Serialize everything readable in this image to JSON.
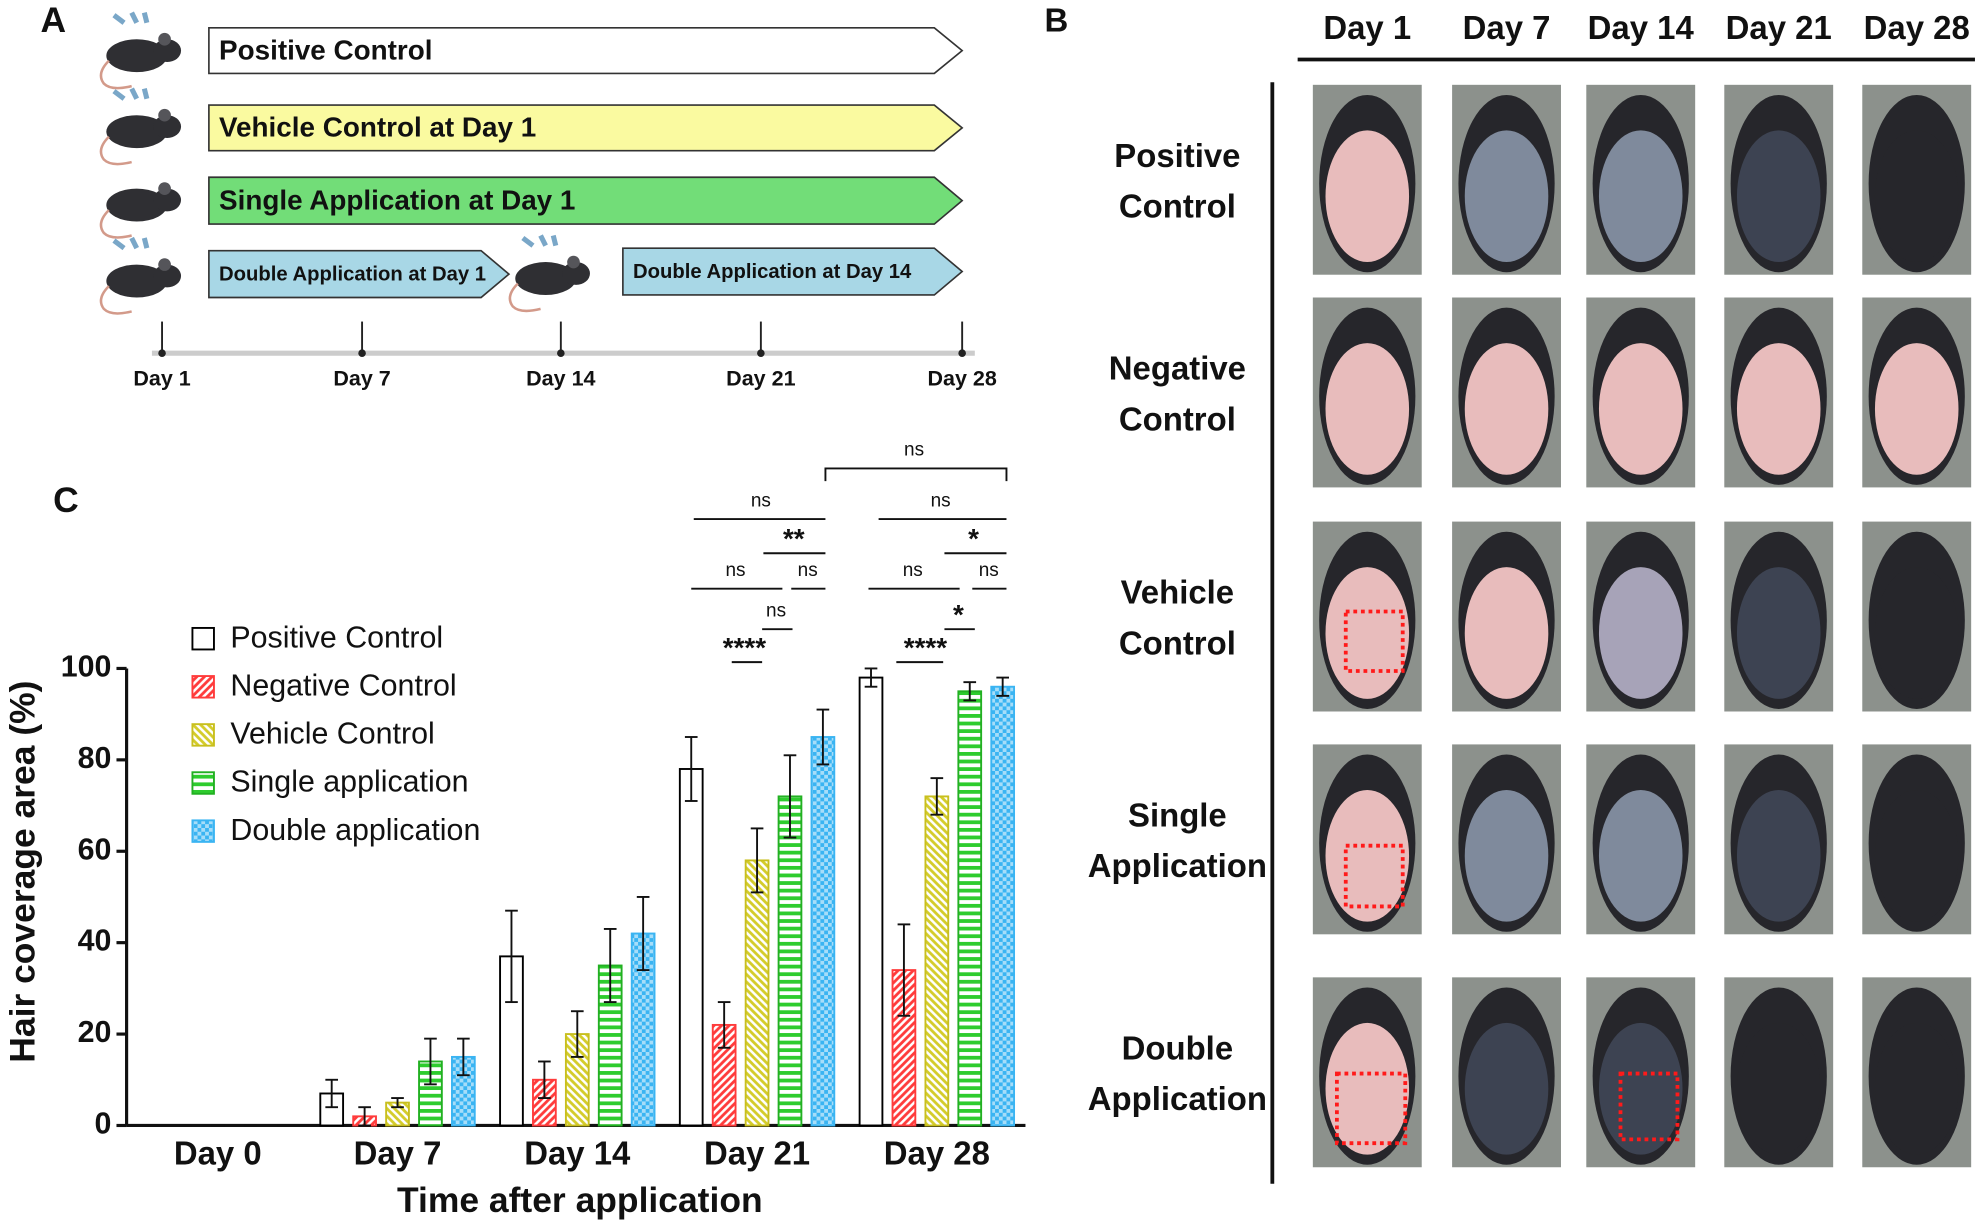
{
  "panel_a": {
    "label": "A",
    "arrows": [
      "Positive Control",
      "Vehicle Control at Day 1",
      "Single Application at Day 1",
      "Double Application at Day 1",
      "Double Application at Day 14"
    ],
    "timeline": [
      "Day 1",
      "Day 7",
      "Day 14",
      "Day 21",
      "Day 28"
    ]
  },
  "panel_b": {
    "label": "B",
    "columns": [
      "Day 1",
      "Day 7",
      "Day 14",
      "Day 21",
      "Day 28"
    ],
    "rows": [
      [
        "Positive",
        "Control"
      ],
      [
        "Negative",
        "Control"
      ],
      [
        "Vehicle",
        "Control"
      ],
      [
        "Single",
        "Application"
      ],
      [
        "Double",
        "Application"
      ]
    ]
  },
  "chart_data": {
    "type": "bar",
    "panel_label": "C",
    "xlabel": "Time after application",
    "ylabel": "Hair coverage area (%)",
    "categories": [
      "Day 0",
      "Day 7",
      "Day 14",
      "Day 21",
      "Day 28"
    ],
    "ylim": [
      0,
      100
    ],
    "yticks": [
      0,
      20,
      40,
      60,
      80,
      100
    ],
    "series": [
      {
        "name": "Positive Control",
        "color": "#ffffff",
        "edgecolor": "#000000",
        "hatch": "none",
        "values": [
          0,
          7,
          37,
          78,
          98
        ],
        "errors": [
          0,
          3,
          10,
          7,
          2
        ]
      },
      {
        "name": "Negative Control",
        "color": "#ff3b3b",
        "edgecolor": "#ff3b3b",
        "hatch": "diagonal",
        "values": [
          0,
          2,
          10,
          22,
          34
        ],
        "errors": [
          0,
          2,
          4,
          5,
          10
        ]
      },
      {
        "name": "Vehicle Control",
        "color": "#d4cc2a",
        "edgecolor": "#c8bf1e",
        "hatch": "diagonal-reverse",
        "values": [
          0,
          5,
          20,
          58,
          72
        ],
        "errors": [
          0,
          1,
          5,
          7,
          4
        ]
      },
      {
        "name": "Single application",
        "color": "#2ecc2e",
        "edgecolor": "#22b022",
        "hatch": "horizontal",
        "values": [
          0,
          14,
          35,
          72,
          95
        ],
        "errors": [
          0,
          5,
          8,
          9,
          2
        ]
      },
      {
        "name": "Double application",
        "color": "#3ab4f2",
        "edgecolor": "#3ab4f2",
        "hatch": "checker",
        "values": [
          0,
          15,
          42,
          85,
          96
        ],
        "errors": [
          0,
          4,
          8,
          6,
          2
        ]
      }
    ],
    "annotations": [
      "ns",
      "**",
      "ns",
      "ns",
      "ns",
      "****",
      "ns",
      "ns",
      "*",
      "ns",
      "ns",
      "*",
      "****"
    ]
  }
}
